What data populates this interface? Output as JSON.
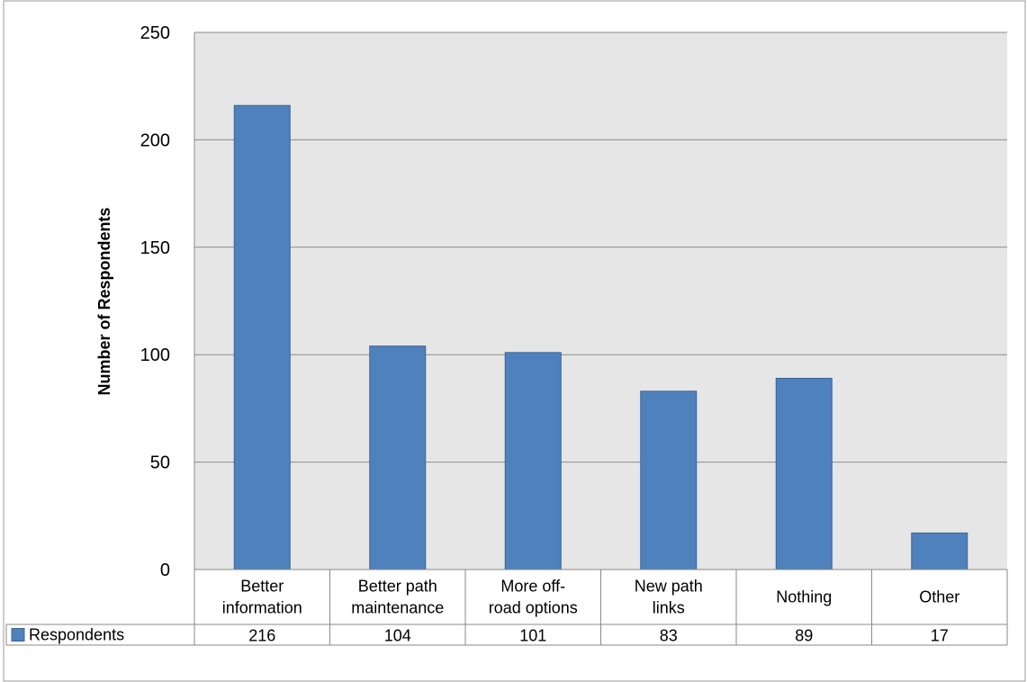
{
  "chart_data": {
    "type": "bar",
    "title": "",
    "xlabel": "",
    "ylabel": "Number of Respondents",
    "ylim": [
      0,
      250
    ],
    "yticks": [
      0,
      50,
      100,
      150,
      200,
      250
    ],
    "grid": true,
    "categories": [
      [
        "Better",
        "information"
      ],
      [
        "Better path",
        "maintenance"
      ],
      [
        "More off-",
        "road options"
      ],
      [
        "New path",
        "links"
      ],
      [
        "Nothing"
      ],
      [
        "Other"
      ]
    ],
    "series": [
      {
        "name": "Respondents",
        "color": "#4f81bd",
        "values": [
          216,
          104,
          101,
          83,
          89,
          17
        ]
      }
    ],
    "data_table": true,
    "legend_position": "data-table"
  }
}
